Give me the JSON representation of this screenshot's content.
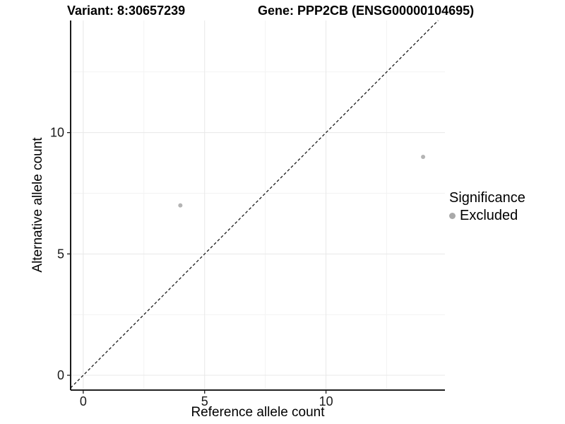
{
  "chart_data": {
    "type": "scatter",
    "titles": {
      "left": "Variant: 8:30657239",
      "right": "Gene: PPP2CB (ENSG00000104695)"
    },
    "xlabel": "Reference allele count",
    "ylabel": "Alternative allele count",
    "xlim": [
      -0.52,
      14.9
    ],
    "ylim": [
      -0.61,
      14.62
    ],
    "x_ticks": [
      0,
      5,
      10
    ],
    "y_ticks": [
      0,
      5,
      10
    ],
    "x_minor_ticks": [
      2.5,
      7.5,
      12.5
    ],
    "y_minor_ticks": [
      2.5,
      7.5,
      12.5
    ],
    "grid": true,
    "legend_position": "right",
    "series": [
      {
        "name": "Excluded",
        "color": "#b4b4b4",
        "point_radius": 3,
        "points": [
          {
            "x": 4,
            "y": 7
          },
          {
            "x": 14,
            "y": 9
          }
        ]
      }
    ],
    "reference_line": {
      "kind": "identity",
      "slope": 1,
      "intercept": 0,
      "style": "dashed",
      "color": "#1a1a1a"
    },
    "legend": {
      "title": "Significance",
      "items": [
        {
          "label": "Excluded",
          "color": "#a9a9a9"
        }
      ]
    }
  },
  "colors": {
    "background": "#ffffff",
    "axis_line": "#000000",
    "tick_label": "#1a1a1a",
    "grid_major": "#e8e8e8",
    "grid_minor": "#f3f3f3"
  }
}
